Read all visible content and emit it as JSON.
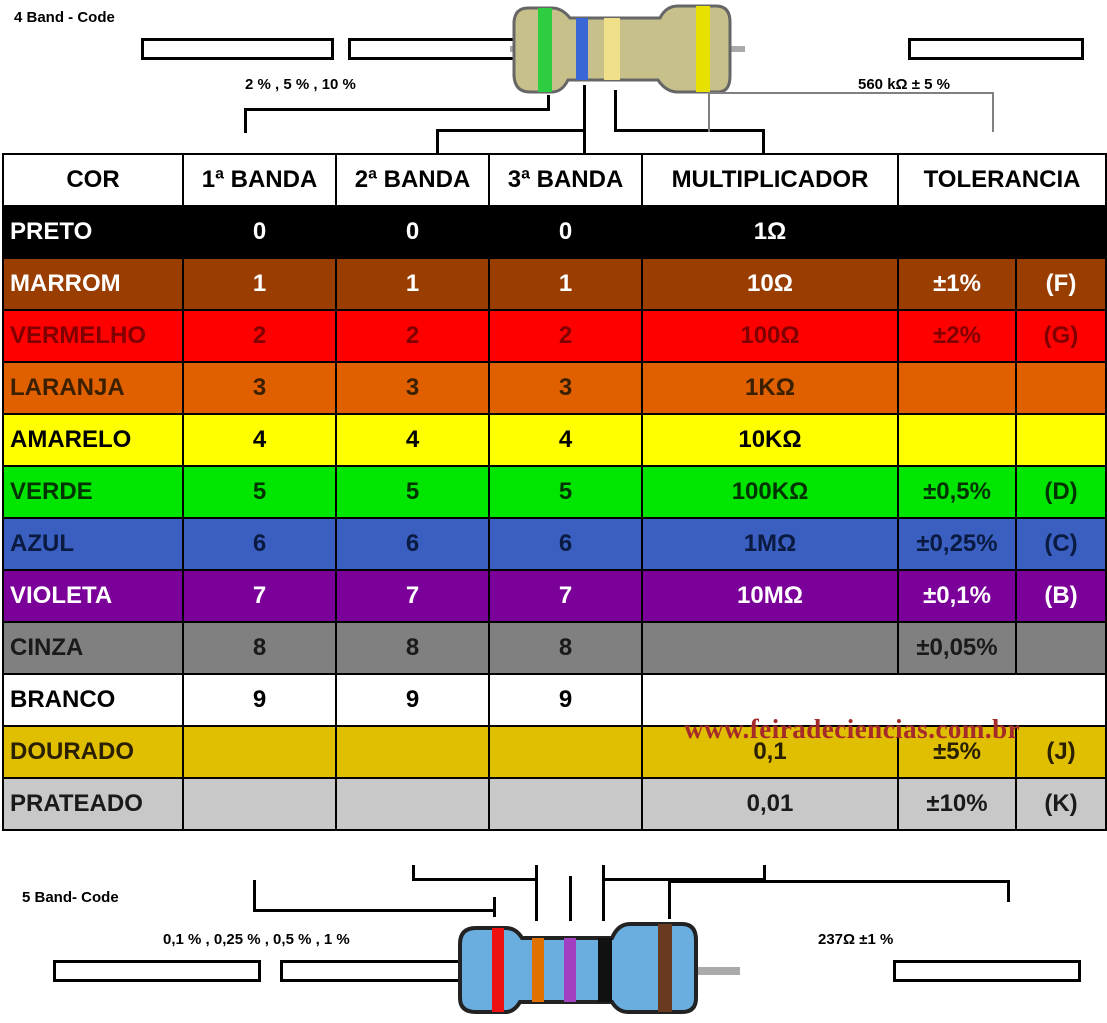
{
  "top": {
    "title": "4 Band - Code",
    "tolerance_options": "2 % , 5 % , 10 %",
    "example_value": "560 kΩ ± 5 %"
  },
  "bottom": {
    "title": "5 Band- Code",
    "tolerance_options": "0,1 % , 0,25 % , 0,5 % , 1 %",
    "example_value": "237Ω ±1 %"
  },
  "table": {
    "headers": [
      "COR",
      "1ª BANDA",
      "2ª BANDA",
      "3ª BANDA",
      "MULTIPLICADOR",
      "TOLERANCIA"
    ],
    "rows": [
      {
        "name": "PRETO",
        "b1": "0",
        "b2": "0",
        "b3": "0",
        "mult": "1Ω",
        "tol": "",
        "code": "",
        "bg": "#000000",
        "fg": "#ffffff"
      },
      {
        "name": "MARROM",
        "b1": "1",
        "b2": "1",
        "b3": "1",
        "mult": "10Ω",
        "tol": "±1%",
        "code": "(F)",
        "bg": "#993d00",
        "fg": "#ffffff"
      },
      {
        "name": "VERMELHO",
        "b1": "2",
        "b2": "2",
        "b3": "2",
        "mult": "100Ω",
        "tol": "±2%",
        "code": "(G)",
        "bg": "#ff0000",
        "fg": "#800000"
      },
      {
        "name": "LARANJA",
        "b1": "3",
        "b2": "3",
        "b3": "3",
        "mult": "1KΩ",
        "tol": "",
        "code": "",
        "bg": "#e06000",
        "fg": "#3a2000"
      },
      {
        "name": "AMARELO",
        "b1": "4",
        "b2": "4",
        "b3": "4",
        "mult": "10KΩ",
        "tol": "",
        "code": "",
        "bg": "#ffff00",
        "fg": "#000000"
      },
      {
        "name": "VERDE",
        "b1": "5",
        "b2": "5",
        "b3": "5",
        "mult": "100KΩ",
        "tol": "±0,5%",
        "code": "(D)",
        "bg": "#00e600",
        "fg": "#003300"
      },
      {
        "name": "AZUL",
        "b1": "6",
        "b2": "6",
        "b3": "6",
        "mult": "1MΩ",
        "tol": "±0,25%",
        "code": "(C)",
        "bg": "#3a5fc0",
        "fg": "#0a1a40"
      },
      {
        "name": "VIOLETA",
        "b1": "7",
        "b2": "7",
        "b3": "7",
        "mult": "10MΩ",
        "tol": "±0,1%",
        "code": "(B)",
        "bg": "#7b0099",
        "fg": "#ffffff"
      },
      {
        "name": "CINZA",
        "b1": "8",
        "b2": "8",
        "b3": "8",
        "mult": "",
        "tol": "±0,05%",
        "code": "",
        "bg": "#808080",
        "fg": "#1a1a1a"
      },
      {
        "name": "BRANCO",
        "b1": "9",
        "b2": "9",
        "b3": "9",
        "mult": "",
        "tol": "",
        "code": "",
        "bg": "#ffffff",
        "fg": "#000000"
      },
      {
        "name": "DOURADO",
        "b1": "",
        "b2": "",
        "b3": "",
        "mult": "0,1",
        "tol": "±5%",
        "code": "(J)",
        "bg": "#e0be00",
        "fg": "#2a2000"
      },
      {
        "name": "PRATEADO",
        "b1": "",
        "b2": "",
        "b3": "",
        "mult": "0,01",
        "tol": "±10%",
        "code": "(K)",
        "bg": "#c8c8c8",
        "fg": "#1a1a1a"
      }
    ]
  },
  "watermark": "www.feiradeciencias.com.br",
  "colors": {
    "resistor_top_body": "#c8c08a",
    "resistor_bottom_body": "#6aaee0",
    "watermark": "#a52a2a"
  }
}
